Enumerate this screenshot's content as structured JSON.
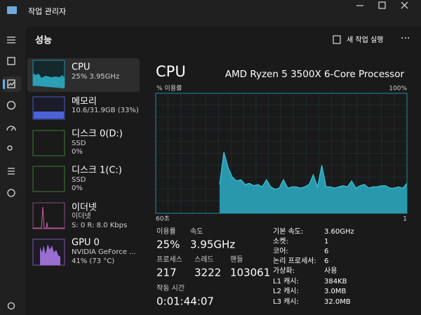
{
  "window": {
    "title": "작업 관리자"
  },
  "header": {
    "section": "성능",
    "new_task": "새 작업 실행"
  },
  "sidebar_items": [
    {
      "title": "CPU",
      "lines": [
        "25% 3.95GHz"
      ]
    },
    {
      "title": "메모리",
      "lines": [
        "10.6/31.9GB (33%)"
      ]
    },
    {
      "title": "디스크 0(D:)",
      "lines": [
        "SSD",
        "0%"
      ]
    },
    {
      "title": "디스크 1(C:)",
      "lines": [
        "SSD",
        "0%"
      ]
    },
    {
      "title": "이더넷",
      "lines": [
        "이더넷",
        "S: 0 R: 8.0 Kbps"
      ]
    },
    {
      "title": "GPU 0",
      "lines": [
        "NVIDIA GeForce ...",
        "41% (73 °C)"
      ]
    }
  ],
  "main": {
    "title": "CPU",
    "processor": "AMD Ryzen 5 3500X 6-Core Processor"
  },
  "chart_data": {
    "type": "area",
    "y_label": "% 이용률",
    "color": "#2a9fb5",
    "xlim": [
      60,
      1
    ],
    "xticks": [
      {
        "value": 60,
        "label": "60초"
      },
      1
    ],
    "ylim": [
      0,
      100
    ],
    "yticks": [
      {
        "value": 100,
        "label": "100%"
      }
    ],
    "x": [
      60,
      59,
      58,
      57,
      56,
      55,
      54,
      53,
      52,
      51,
      50,
      49,
      48,
      47,
      46,
      45,
      44,
      43,
      42,
      41,
      40,
      39,
      38,
      37,
      36,
      35,
      34,
      33,
      32,
      31,
      30,
      29,
      28,
      27,
      26,
      25,
      24,
      23,
      22,
      21,
      20,
      19,
      18,
      17,
      16,
      15,
      14,
      13,
      12,
      11,
      10,
      9,
      8,
      7,
      6,
      5,
      4,
      3,
      2,
      1
    ],
    "values": [
      null,
      null,
      null,
      null,
      null,
      null,
      null,
      null,
      null,
      null,
      null,
      null,
      null,
      null,
      null,
      24,
      51,
      38,
      30,
      27,
      28,
      24,
      25,
      23,
      24,
      22,
      28,
      22,
      20,
      21,
      28,
      21,
      22,
      22,
      21,
      22,
      24,
      32,
      22,
      40,
      22,
      22,
      21,
      22,
      23,
      22,
      27,
      21,
      23,
      24,
      21,
      22,
      22,
      23,
      23,
      21,
      21,
      22,
      21,
      25
    ]
  },
  "stats": [
    {
      "label": "이용률",
      "value": "25%"
    },
    {
      "label": "속도",
      "value": "3.95GHz"
    },
    {
      "label": "프로세스",
      "value": "217"
    },
    {
      "label": "스레드",
      "value": "3222"
    },
    {
      "label": "핸들",
      "value": "103061"
    },
    {
      "label": "작동 시간",
      "value": "0:01:44:07"
    }
  ],
  "specs": [
    [
      "기본 속도:",
      "3.60GHz"
    ],
    [
      "소켓:",
      "1"
    ],
    [
      "코어:",
      "6"
    ],
    [
      "논리 프로세서:",
      "6"
    ],
    [
      "가상화:",
      "사용"
    ],
    [
      "L1 캐시:",
      "384KB"
    ],
    [
      "L2 캐시:",
      "3.0MB"
    ],
    [
      "L3 캐시:",
      "32.0MB"
    ]
  ]
}
